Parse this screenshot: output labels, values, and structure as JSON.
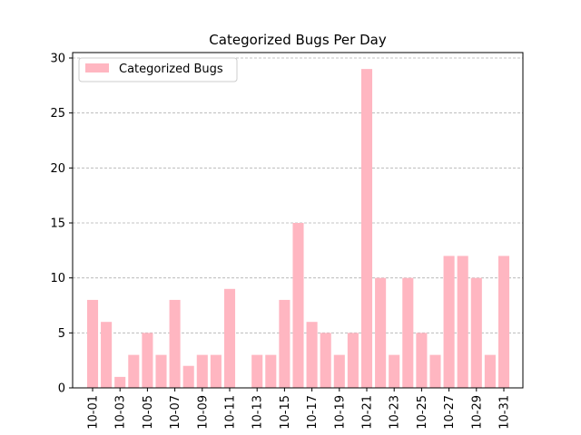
{
  "chart_data": {
    "type": "bar",
    "title": "Categorized Bugs Per Day",
    "xlabel": "",
    "ylabel": "",
    "categories": [
      "10-01",
      "10-02",
      "10-03",
      "10-04",
      "10-05",
      "10-06",
      "10-07",
      "10-08",
      "10-09",
      "10-10",
      "10-11",
      "10-12",
      "10-13",
      "10-14",
      "10-15",
      "10-16",
      "10-17",
      "10-18",
      "10-19",
      "10-20",
      "10-21",
      "10-22",
      "10-23",
      "10-24",
      "10-25",
      "10-26",
      "10-27",
      "10-28",
      "10-29",
      "10-30",
      "10-31"
    ],
    "tick_labels": [
      "10-01",
      "10-03",
      "10-05",
      "10-07",
      "10-09",
      "10-11",
      "10-13",
      "10-15",
      "10-17",
      "10-19",
      "10-21",
      "10-23",
      "10-25",
      "10-27",
      "10-29",
      "10-31"
    ],
    "series": [
      {
        "name": "Categorized Bugs",
        "values": [
          8,
          6,
          1,
          3,
          5,
          3,
          8,
          2,
          3,
          3,
          9,
          0,
          3,
          3,
          8,
          15,
          6,
          5,
          3,
          5,
          29,
          10,
          3,
          10,
          5,
          3,
          12,
          12,
          10,
          3,
          12
        ]
      }
    ],
    "ylim": [
      0,
      30
    ],
    "yticks": [
      0,
      5,
      10,
      15,
      20,
      25,
      30
    ],
    "grid": "y-dashed",
    "legend_position": "top-left",
    "colors": {
      "bar": "#ffb6c1",
      "grid": "#b0b0b0",
      "axis": "#000000"
    }
  }
}
